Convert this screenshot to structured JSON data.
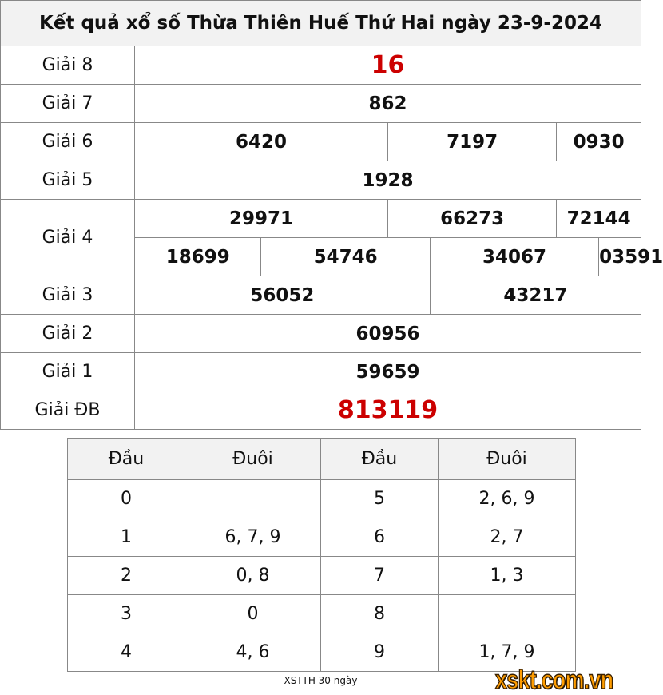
{
  "title": "Kết quả xổ số Thừa Thiên Huế Thứ Hai ngày 23-9-2024",
  "prizes": {
    "g8": {
      "label": "Giải 8",
      "values": [
        "16"
      ]
    },
    "g7": {
      "label": "Giải 7",
      "values": [
        "862"
      ]
    },
    "g6": {
      "label": "Giải 6",
      "values": [
        "6420",
        "7197",
        "0930"
      ]
    },
    "g5": {
      "label": "Giải 5",
      "values": [
        "1928"
      ]
    },
    "g4": {
      "label": "Giải 4",
      "values": [
        "29971",
        "66273",
        "72144",
        "18699",
        "54746",
        "34067",
        "03591"
      ]
    },
    "g3": {
      "label": "Giải 3",
      "values": [
        "56052",
        "43217"
      ]
    },
    "g2": {
      "label": "Giải 2",
      "values": [
        "60956"
      ]
    },
    "g1": {
      "label": "Giải 1",
      "values": [
        "59659"
      ]
    },
    "gdb": {
      "label": "Giải ĐB",
      "values": [
        "813119"
      ]
    }
  },
  "highlight_color": "#cc0000",
  "dauduoi": {
    "headers": [
      "Đầu",
      "Đuôi",
      "Đầu",
      "Đuôi"
    ],
    "rows": [
      [
        "0",
        "",
        "5",
        "2, 6, 9"
      ],
      [
        "1",
        "6, 7, 9",
        "6",
        "2, 7"
      ],
      [
        "2",
        "0, 8",
        "7",
        "1, 3"
      ],
      [
        "3",
        "0",
        "8",
        ""
      ],
      [
        "4",
        "4, 6",
        "9",
        "1, 7, 9"
      ]
    ]
  },
  "caption": "XSTTH 30 ngày",
  "logo": "xskt.com.vn"
}
